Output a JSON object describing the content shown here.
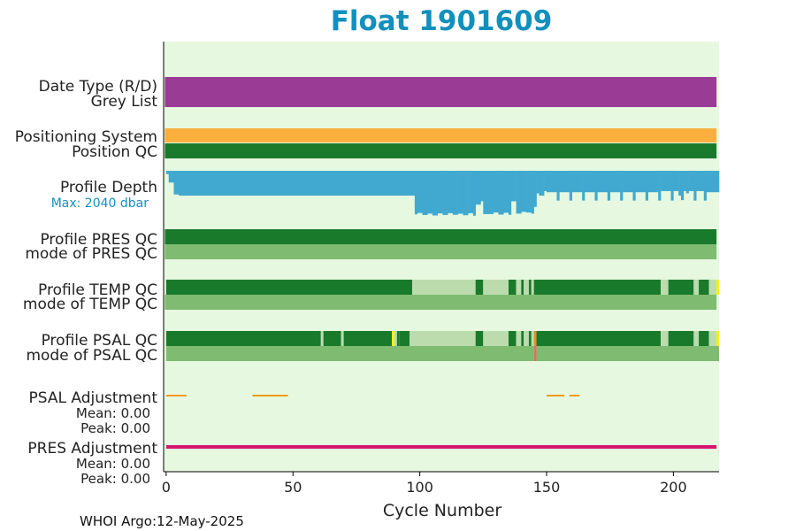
{
  "chart_data": {
    "type": "timeline",
    "title": "Float 1901609",
    "xlabel": "Cycle Number",
    "xlim": [
      -1,
      218
    ],
    "xticks": [
      0,
      50,
      100,
      150,
      200
    ],
    "footer": "WHOI Argo:12-May-2025",
    "colors": {
      "background": "#e6f8df",
      "date_type": "#9a3b96",
      "positioning": "#f9b03f",
      "good": "#1a7a2c",
      "mode": "#7fbb70",
      "probably_bad": "#bcdcae",
      "flag_yellow": "#f5f01a",
      "flag_orange": "#ef8a1f",
      "flag_red": "#e07064",
      "depth": "#41a9d0",
      "psal_adj": "#f09a1a",
      "pres_adj": "#d4156e"
    },
    "rows": [
      {
        "label": "Date Type (R/D)",
        "type": "solid",
        "color": "date_type"
      },
      {
        "label": "Grey List",
        "type": "solid",
        "color": "date_type"
      },
      {
        "label": "Positioning System",
        "type": "solid",
        "color": "positioning"
      },
      {
        "label": "Position QC",
        "type": "solid",
        "color": "good"
      },
      {
        "label": "Profile Depth",
        "sublabel": "Max: 2040 dbar",
        "type": "depth",
        "max_dbar": 2040
      },
      {
        "label": "Profile PRES QC",
        "type": "solid",
        "color": "good"
      },
      {
        "label": "mode of PRES QC",
        "type": "solid",
        "color": "mode"
      },
      {
        "label": "Profile TEMP QC",
        "type": "segments",
        "segments": [
          [
            0,
            97,
            "good"
          ],
          [
            97,
            122,
            "probably_bad"
          ],
          [
            122,
            125,
            "good"
          ],
          [
            125,
            135,
            "probably_bad"
          ],
          [
            135,
            138,
            "good"
          ],
          [
            138,
            140,
            "probably_bad"
          ],
          [
            140,
            141,
            "good"
          ],
          [
            141,
            143,
            "probably_bad"
          ],
          [
            143,
            144,
            "good"
          ],
          [
            144,
            145,
            "probably_bad"
          ],
          [
            145,
            195,
            "good"
          ],
          [
            195,
            198,
            "probably_bad"
          ],
          [
            198,
            208,
            "good"
          ],
          [
            208,
            210,
            "probably_bad"
          ],
          [
            210,
            214,
            "good"
          ],
          [
            214,
            217,
            "probably_bad"
          ],
          [
            217,
            218,
            "flag_yellow"
          ]
        ]
      },
      {
        "label": "mode of TEMP QC",
        "type": "solid",
        "color": "mode"
      },
      {
        "label": "Profile PSAL QC",
        "type": "segments",
        "segments": [
          [
            0,
            61,
            "good"
          ],
          [
            61,
            62,
            "probably_bad"
          ],
          [
            62,
            69,
            "good"
          ],
          [
            69,
            70,
            "probably_bad"
          ],
          [
            70,
            89,
            "good"
          ],
          [
            89,
            90,
            "flag_yellow"
          ],
          [
            90,
            91,
            "probably_bad"
          ],
          [
            91,
            92,
            "good"
          ],
          [
            92,
            96,
            "good"
          ],
          [
            96,
            122,
            "probably_bad"
          ],
          [
            122,
            125,
            "good"
          ],
          [
            125,
            135,
            "probably_bad"
          ],
          [
            135,
            138,
            "good"
          ],
          [
            138,
            140,
            "probably_bad"
          ],
          [
            140,
            141,
            "good"
          ],
          [
            141,
            143,
            "probably_bad"
          ],
          [
            143,
            144,
            "good"
          ],
          [
            144,
            145,
            "probably_bad"
          ],
          [
            145,
            146,
            "flag_orange"
          ],
          [
            146,
            195,
            "good"
          ],
          [
            195,
            198,
            "probably_bad"
          ],
          [
            198,
            208,
            "good"
          ],
          [
            208,
            210,
            "probably_bad"
          ],
          [
            210,
            214,
            "good"
          ],
          [
            214,
            217,
            "probably_bad"
          ],
          [
            217,
            218,
            "flag_yellow"
          ]
        ]
      },
      {
        "label": "mode of PSAL QC",
        "type": "segments",
        "segments": [
          [
            0,
            145,
            "mode"
          ],
          [
            145,
            146,
            "flag_red"
          ],
          [
            146,
            218,
            "mode"
          ]
        ]
      },
      {
        "label": "PSAL Adjustment",
        "mean_label": "Mean: 0.00",
        "peak_label": "Peak: 0.00",
        "type": "adjustment",
        "color": "psal_adj",
        "dashes": [
          [
            0,
            8
          ],
          [
            34,
            48
          ],
          [
            150,
            157
          ],
          [
            159,
            163
          ]
        ]
      },
      {
        "label": "PRES Adjustment",
        "mean_label": "Mean: 0.00",
        "peak_label": "Peak: 0.00",
        "type": "adjustment",
        "color": "pres_adj",
        "dashes": [
          [
            0,
            217
          ]
        ]
      }
    ],
    "depth_profile_dbar": [
      [
        0,
        1,
        150
      ],
      [
        1,
        3,
        520
      ],
      [
        3,
        5,
        1050
      ],
      [
        5,
        98,
        1100
      ],
      [
        98,
        99,
        1930
      ],
      [
        99,
        101,
        1870
      ],
      [
        101,
        103,
        1960
      ],
      [
        103,
        105,
        1900
      ],
      [
        105,
        107,
        1980
      ],
      [
        107,
        109,
        1890
      ],
      [
        109,
        111,
        1960
      ],
      [
        111,
        113,
        1880
      ],
      [
        113,
        115,
        1950
      ],
      [
        115,
        117,
        1900
      ],
      [
        117,
        119,
        1970
      ],
      [
        119,
        121,
        1880
      ],
      [
        121,
        122,
        1990
      ],
      [
        122,
        124,
        1500
      ],
      [
        124,
        125,
        1350
      ],
      [
        125,
        129,
        1920
      ],
      [
        129,
        131,
        1850
      ],
      [
        131,
        133,
        1940
      ],
      [
        133,
        135,
        1860
      ],
      [
        135,
        136,
        1950
      ],
      [
        136,
        138,
        1350
      ],
      [
        138,
        140,
        1900
      ],
      [
        140,
        142,
        1820
      ],
      [
        142,
        144,
        1850
      ],
      [
        144,
        145,
        1900
      ],
      [
        145,
        146,
        1600
      ],
      [
        146,
        147,
        1000
      ],
      [
        147,
        149,
        1100
      ],
      [
        149,
        150,
        900
      ],
      [
        150,
        151,
        950
      ],
      [
        151,
        154,
        950
      ],
      [
        154,
        155,
        1320
      ],
      [
        155,
        159,
        950
      ],
      [
        159,
        160,
        1320
      ],
      [
        160,
        164,
        950
      ],
      [
        164,
        165,
        1320
      ],
      [
        165,
        169,
        950
      ],
      [
        169,
        170,
        1320
      ],
      [
        170,
        174,
        950
      ],
      [
        174,
        175,
        1320
      ],
      [
        175,
        179,
        950
      ],
      [
        179,
        180,
        1320
      ],
      [
        180,
        184,
        950
      ],
      [
        184,
        185,
        1320
      ],
      [
        185,
        189,
        950
      ],
      [
        189,
        190,
        1320
      ],
      [
        190,
        194,
        950
      ],
      [
        194,
        195,
        1320
      ],
      [
        195,
        199,
        900
      ],
      [
        199,
        200,
        1320
      ],
      [
        200,
        202,
        900
      ],
      [
        202,
        203,
        1100
      ],
      [
        203,
        204,
        1300
      ],
      [
        204,
        205,
        900
      ],
      [
        205,
        206,
        1000
      ],
      [
        206,
        208,
        900
      ],
      [
        208,
        209,
        1320
      ],
      [
        209,
        212,
        900
      ],
      [
        212,
        213,
        1320
      ],
      [
        213,
        218,
        950
      ]
    ]
  }
}
